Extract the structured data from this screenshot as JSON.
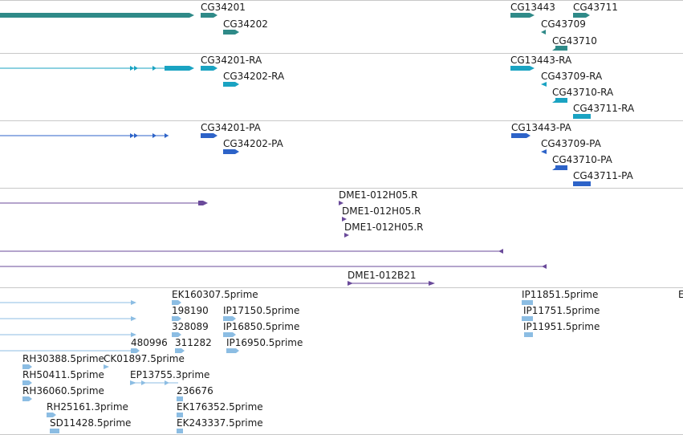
{
  "colors": {
    "gene": "#2f8a88",
    "transcript": "#1aa3c2",
    "protein": "#2d63c8",
    "est": "#6a4a9a",
    "cdna": "#8cbde3",
    "separator": "#c8c8c8"
  },
  "tracks": {
    "genes": {
      "labels": [
        "CG34201",
        "CG34202",
        "CG13443",
        "CG43711",
        "CG43709",
        "CG43710"
      ]
    },
    "transcripts": {
      "labels": [
        "CG34201-RA",
        "CG34202-RA",
        "CG13443-RA",
        "CG43709-RA",
        "CG43710-RA",
        "CG43711-RA"
      ]
    },
    "proteins": {
      "labels": [
        "CG34201-PA",
        "CG34202-PA",
        "CG13443-PA",
        "CG43709-PA",
        "CG43710-PA",
        "CG43711-PA"
      ]
    },
    "est_clones": {
      "labels": [
        "DME1-012H05.R",
        "DME1-012H05.R",
        "DME1-012H05.R",
        "DME1-012B21"
      ]
    },
    "cdna_reads": {
      "labels": [
        "EK160307.5prime",
        "IP11851.5prime",
        "198190",
        "IP17150.5prime",
        "IP11751.5prime",
        "328089",
        "IP16850.5prime",
        "IP11951.5prime",
        "480996",
        "311282",
        "IP16950.5prime",
        "RH30388.5prime",
        "CK01897.5prime",
        "RH50411.5prime",
        "EP13755.3prime",
        "RH36060.5prime",
        "236676",
        "RH25161.3prime",
        "EK176352.5prime",
        "SD11428.5prime",
        "EK243337.5prime",
        "E"
      ]
    }
  }
}
